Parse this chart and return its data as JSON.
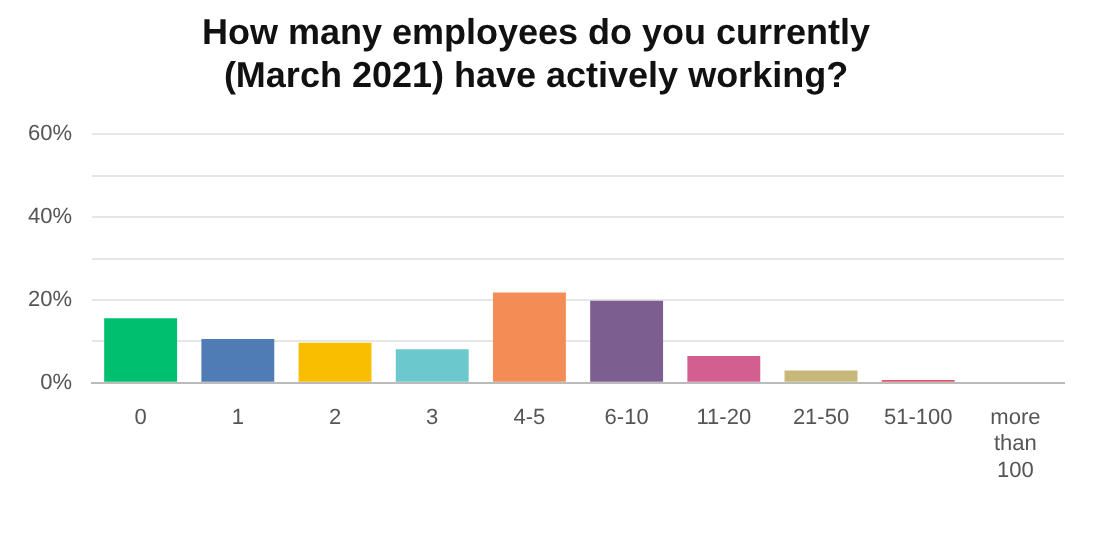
{
  "chart_data": {
    "type": "bar",
    "title": "How many employees do you currently (March 2021) have actively working?",
    "categories": [
      "0",
      "1",
      "2",
      "3",
      "4-5",
      "6-10",
      "11-20",
      "21-50",
      "51-100",
      "more than 100"
    ],
    "values": [
      15.6,
      10.6,
      9.7,
      8.1,
      21.8,
      19.8,
      6.5,
      3.0,
      0.7,
      0
    ],
    "colors": [
      "#00bf6f",
      "#507cb6",
      "#f9be00",
      "#6bc8cd",
      "#f38d55",
      "#7d5e90",
      "#d25f90",
      "#c7b879",
      "#e05666",
      "#cccccc"
    ],
    "ylim": [
      0,
      60
    ],
    "yticks": [
      {
        "value": 0,
        "label": "0%"
      },
      {
        "value": 10,
        "label": null
      },
      {
        "value": 20,
        "label": "20%"
      },
      {
        "value": 30,
        "label": null
      },
      {
        "value": 40,
        "label": "40%"
      },
      {
        "value": 50,
        "label": null
      },
      {
        "value": 60,
        "label": "60%"
      }
    ],
    "grid": "y",
    "legend": false
  }
}
